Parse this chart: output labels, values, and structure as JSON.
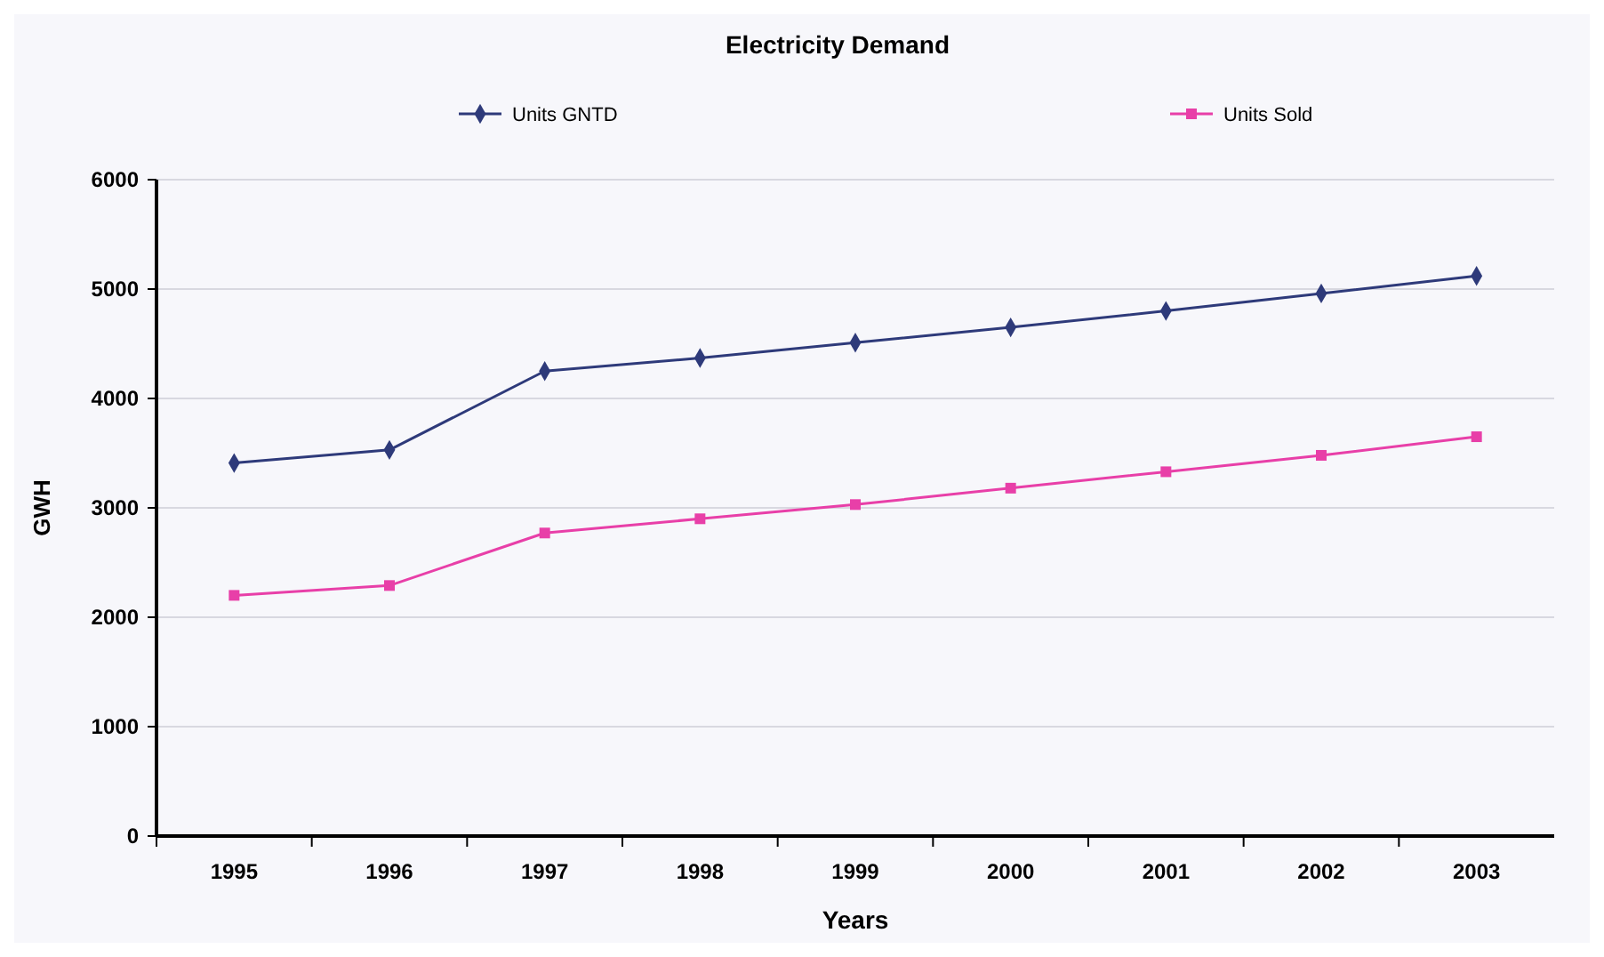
{
  "chart_data": {
    "type": "line",
    "title": "Electricity Demand",
    "xlabel": "Years",
    "ylabel": "GWH",
    "categories": [
      "1995",
      "1996",
      "1997",
      "1998",
      "1999",
      "2000",
      "2001",
      "2002",
      "2003"
    ],
    "series": [
      {
        "name": "Units GNTD",
        "color": "#2e3a7a",
        "marker": "diamond",
        "values": [
          3410,
          3530,
          4250,
          4370,
          4510,
          4650,
          4800,
          4960,
          5120
        ]
      },
      {
        "name": "Units Sold",
        "color": "#e83fa8",
        "marker": "square",
        "values": [
          2200,
          2290,
          2770,
          2900,
          3030,
          3180,
          3330,
          3480,
          3650
        ]
      }
    ],
    "ylim": [
      0,
      6000
    ],
    "yticks": [
      0,
      1000,
      2000,
      3000,
      4000,
      5000,
      6000
    ],
    "grid": "y",
    "legend": "top"
  }
}
